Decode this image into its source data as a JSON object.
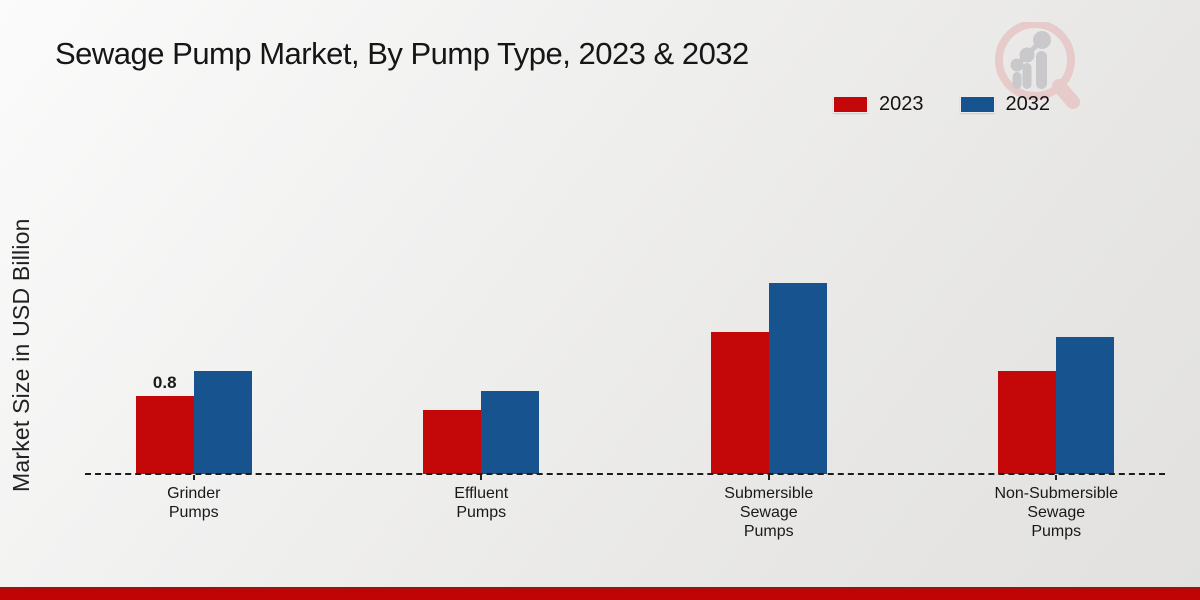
{
  "title": "Sewage Pump Market, By Pump Type, 2023 & 2032",
  "watermark_icon": "magnifier-bar-chart-logo",
  "legend": {
    "position": "top-right",
    "items": [
      {
        "label": "2023",
        "color": "#c40708"
      },
      {
        "label": "2032",
        "color": "#17538f"
      }
    ]
  },
  "chart_data": {
    "type": "bar",
    "title": "Sewage Pump Market, By Pump Type, 2023 & 2032",
    "xlabel": "",
    "ylabel": "Market Size in USD Billion",
    "units": "USD Billion",
    "categories": [
      "Grinder Pumps",
      "Effluent Pumps",
      "Submersible Sewage Pumps",
      "Non-Submersible Sewage Pumps"
    ],
    "categories_wrapped": [
      "Grinder\nPumps",
      "Effluent\nPumps",
      "Submersible\nSewage\nPumps",
      "Non-Submersible\nSewage\nPumps"
    ],
    "series": [
      {
        "name": "2023",
        "color": "#c40708",
        "values": [
          0.8,
          0.65,
          1.45,
          1.05
        ],
        "bar_labels": [
          "0.8",
          "",
          "",
          ""
        ]
      },
      {
        "name": "2032",
        "color": "#17538f",
        "values": [
          1.05,
          0.85,
          1.95,
          1.4
        ],
        "bar_labels": [
          "",
          "",
          "",
          ""
        ]
      }
    ],
    "ylim": [
      0,
      2.1
    ],
    "grid": false,
    "legend_position": "top-right",
    "baseline_style": "dashed",
    "data_label_note": "only 2023 Grinder Pumps bar is labeled (0.8)"
  },
  "footer": {
    "accent_color": "#c00304"
  }
}
